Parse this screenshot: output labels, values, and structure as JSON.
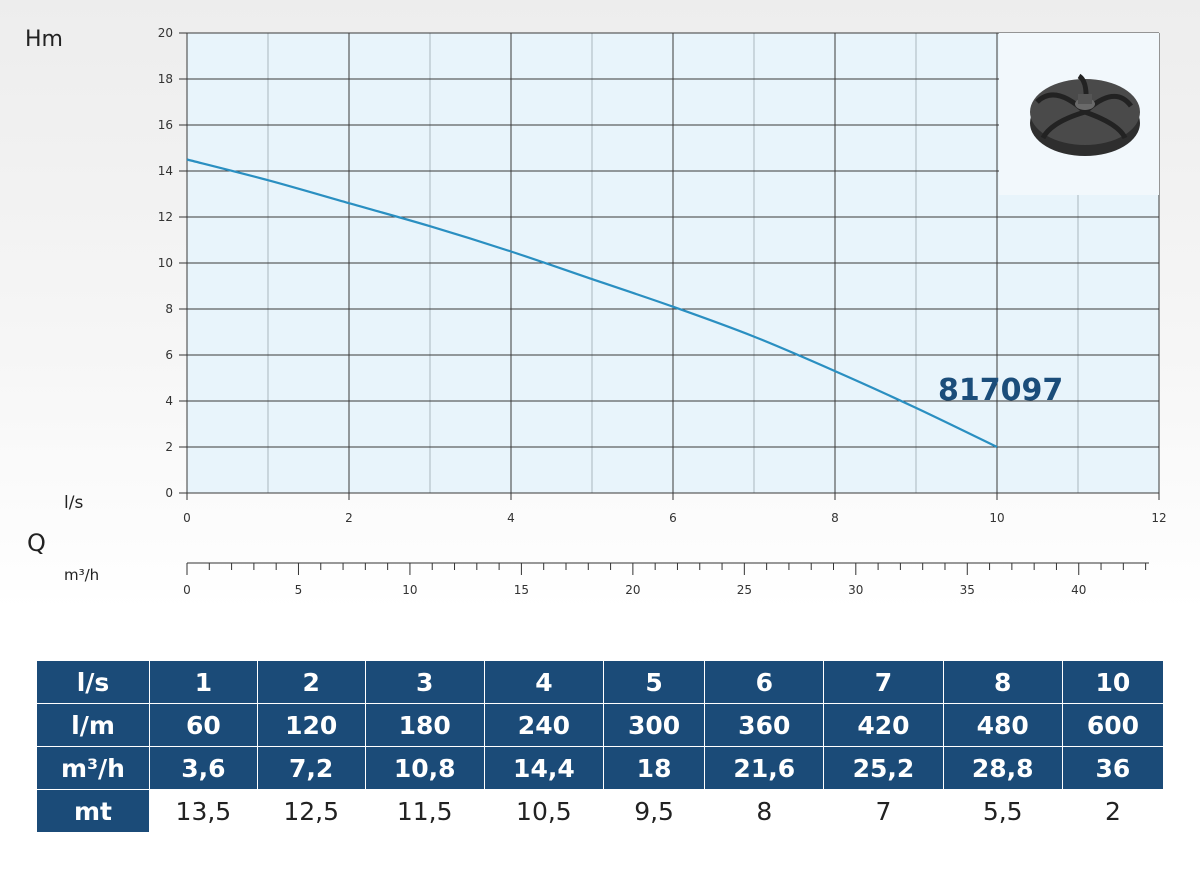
{
  "chart_data": {
    "type": "line",
    "model": "817097",
    "y_axis": {
      "label": "Hm",
      "ticks": [
        0,
        2,
        4,
        6,
        8,
        10,
        12,
        14,
        16,
        18,
        20
      ],
      "ylim": [
        0,
        20
      ]
    },
    "x_axis": {
      "label": "l/s",
      "ticks": [
        0,
        2,
        4,
        6,
        8,
        10,
        12
      ],
      "xlim": [
        0,
        12
      ]
    },
    "q_label": "Q",
    "secondary_x_axis": {
      "label": "m³/h",
      "ticks": [
        0,
        5,
        10,
        15,
        20,
        25,
        30,
        35,
        40
      ],
      "range": [
        0,
        43.6
      ]
    },
    "grid": true,
    "series": [
      {
        "color": "#2a8fc1",
        "x": [
          0,
          1,
          2,
          3,
          4,
          5,
          6,
          7,
          8,
          9,
          10
        ],
        "y": [
          14.5,
          13.6,
          12.6,
          11.6,
          10.5,
          9.3,
          8.1,
          6.8,
          5.3,
          3.7,
          2
        ]
      }
    ]
  },
  "table": {
    "rows": [
      {
        "label": "l/s",
        "values": [
          "1",
          "2",
          "3",
          "4",
          "5",
          "6",
          "7",
          "8",
          "10"
        ]
      },
      {
        "label": "l/m",
        "values": [
          "60",
          "120",
          "180",
          "240",
          "300",
          "360",
          "420",
          "480",
          "600"
        ]
      },
      {
        "label": "m³/h",
        "values": [
          "3,6",
          "7,2",
          "10,8",
          "14,4",
          "18",
          "21,6",
          "25,2",
          "28,8",
          "36"
        ]
      },
      {
        "label": "mt",
        "values": [
          "13,5",
          "12,5",
          "11,5",
          "10,5",
          "9,5",
          "8",
          "7",
          "5,5",
          "2"
        ]
      }
    ]
  },
  "image": {
    "icon": "impeller-icon"
  },
  "colors": {
    "plot_bg": "#e8f4fb",
    "grid": "#3a3a3a",
    "curve": "#2a8fc1",
    "table_header": "#1b4b78",
    "model_text": "#1b4d7a"
  }
}
